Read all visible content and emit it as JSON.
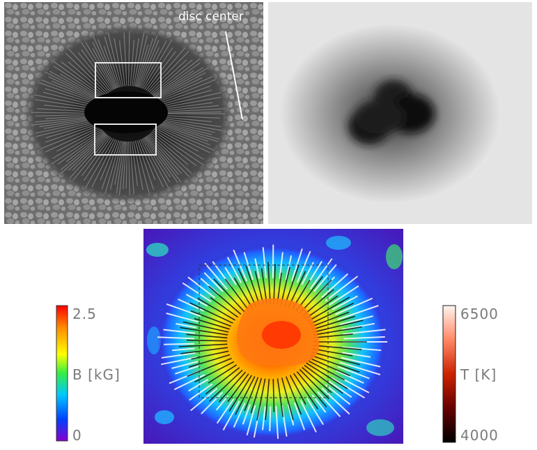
{
  "top_left_panel": {
    "annotation_label": "disc center"
  },
  "field_colorbar": {
    "max_label": "2.5",
    "min_label": "0",
    "quantity_label": "B [kG]",
    "colors": [
      "#ff0000",
      "#ff8800",
      "#ffff00",
      "#33ee44",
      "#00c8ff",
      "#0040ff",
      "#8800cc"
    ]
  },
  "temperature_colorbar": {
    "max_label": "6500",
    "min_label": "4000",
    "quantity_label": "T [K]",
    "colors": [
      "#fff4ee",
      "#ff8866",
      "#cc2200",
      "#660000",
      "#000000"
    ]
  }
}
